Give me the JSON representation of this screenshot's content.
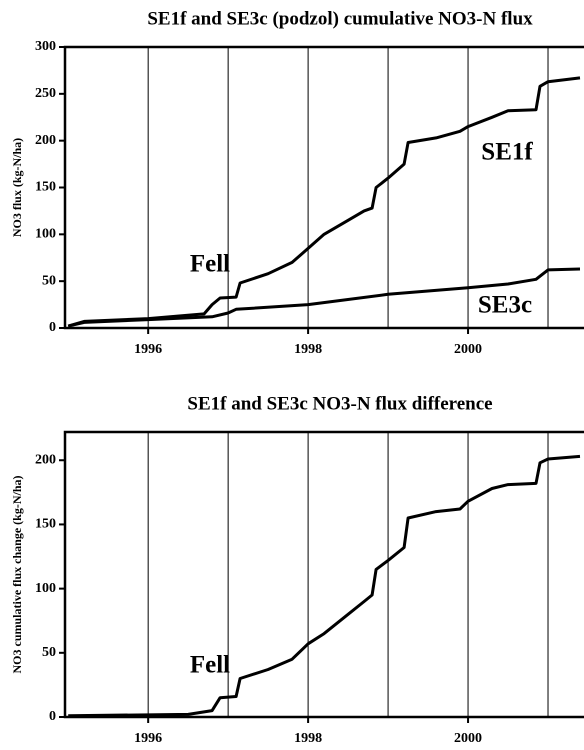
{
  "chart_data": [
    {
      "type": "line",
      "title": "SE1f and SE3c (podzol) cumulative NO3-N flux",
      "ylabel": "NO3 flux (kg-N/ha)",
      "xlim": [
        1994.96,
        2001.45
      ],
      "xticks": [
        1996,
        1998,
        2000
      ],
      "xgrid": [
        1996,
        1997,
        1998,
        1999,
        2000,
        2001
      ],
      "ylim": [
        0,
        300
      ],
      "yticks": [
        0,
        50,
        100,
        150,
        200,
        250,
        300
      ],
      "annotations": [
        "SE1f",
        "Fell",
        "SE3c"
      ],
      "series": [
        {
          "name": "SE1f",
          "color": "#000000",
          "x": [
            1995.0,
            1995.2,
            1996.0,
            1996.7,
            1996.8,
            1996.9,
            1997.1,
            1997.15,
            1997.5,
            1997.8,
            1998.0,
            1998.2,
            1998.5,
            1998.7,
            1998.8,
            1998.85,
            1999.0,
            1999.2,
            1999.25,
            1999.6,
            1999.9,
            2000.0,
            2000.3,
            2000.5,
            2000.85,
            2000.9,
            2001.0,
            2001.4
          ],
          "values": [
            2,
            7,
            10,
            15,
            25,
            32,
            33,
            48,
            58,
            70,
            85,
            100,
            115,
            125,
            128,
            150,
            160,
            175,
            198,
            203,
            210,
            215,
            225,
            232,
            233,
            258,
            263,
            267
          ]
        },
        {
          "name": "SE3c",
          "color": "#000000",
          "x": [
            1995.0,
            1995.2,
            1996.0,
            1996.8,
            1997.0,
            1997.1,
            1998.0,
            1999.0,
            2000.0,
            2000.5,
            2000.85,
            2001.0,
            2001.4
          ],
          "values": [
            2,
            6,
            9,
            12,
            16,
            20,
            25,
            36,
            43,
            47,
            52,
            62,
            63
          ]
        }
      ]
    },
    {
      "type": "line",
      "title": "SE1f and SE3c NO3-N flux difference",
      "ylabel": "NO3 cumulative flux change (kg-N/ha)",
      "xlim": [
        1994.96,
        2001.45
      ],
      "xticks": [
        1996,
        1998,
        2000
      ],
      "xgrid": [
        1996,
        1997,
        1998,
        1999,
        2000,
        2001
      ],
      "ylim": [
        0,
        222
      ],
      "yticks": [
        0,
        50,
        100,
        150,
        200
      ],
      "annotations": [
        "Fell"
      ],
      "series": [
        {
          "name": "difference",
          "color": "#000000",
          "x": [
            1995.0,
            1996.5,
            1996.8,
            1996.9,
            1997.1,
            1997.15,
            1997.5,
            1997.8,
            1998.0,
            1998.2,
            1998.5,
            1998.7,
            1998.8,
            1998.85,
            1999.0,
            1999.2,
            1999.25,
            1999.6,
            1999.9,
            2000.0,
            2000.3,
            2000.5,
            2000.85,
            2000.9,
            2001.0,
            2001.4
          ],
          "values": [
            1,
            2,
            5,
            15,
            16,
            30,
            37,
            45,
            57,
            65,
            80,
            90,
            95,
            115,
            122,
            132,
            155,
            160,
            162,
            168,
            178,
            181,
            182,
            198,
            201,
            203
          ]
        }
      ]
    }
  ]
}
